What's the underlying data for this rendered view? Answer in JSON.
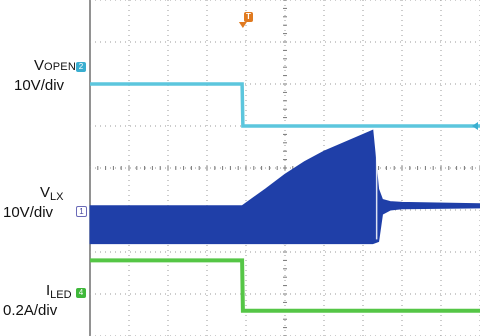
{
  "chart_data": {
    "type": "line",
    "title": "",
    "grid": true,
    "grid_divisions": {
      "x": 10,
      "y": 8
    },
    "trigger_marker": "T",
    "colors": {
      "background": "#ffffff",
      "grid": "#9a9a9a",
      "ch1": "#1f3fa8",
      "ch2": "#5cc6dd",
      "ch4": "#55c646"
    },
    "channels": [
      {
        "id": "2",
        "name_main": "V",
        "name_sub": "OPEN",
        "scale": "10V/div",
        "color": "#5cc6dd",
        "x": [
          0,
          3.9,
          3.92,
          10
        ],
        "y": [
          6.0,
          6.0,
          5.0,
          5.0
        ]
      },
      {
        "id": "1",
        "name_main": "V",
        "name_sub": "LX",
        "scale": "10V/div",
        "color": "#1f3fa8",
        "envelope": {
          "x": [
            0,
            3.9,
            4.5,
            5.0,
            5.5,
            6.0,
            6.5,
            7.0,
            7.25,
            7.4,
            7.5,
            7.7,
            8.0,
            10
          ],
          "top": [
            3.1,
            3.1,
            3.5,
            3.85,
            4.15,
            4.4,
            4.6,
            4.8,
            4.9,
            3.5,
            3.25,
            3.2,
            3.18,
            3.15
          ],
          "bottom": [
            2.2,
            2.2,
            2.2,
            2.2,
            2.2,
            2.2,
            2.2,
            2.2,
            2.2,
            2.25,
            2.9,
            3.0,
            3.03,
            3.05
          ]
        }
      },
      {
        "id": "4",
        "name_main": "I",
        "name_sub": "LED",
        "scale": "0.2A/div",
        "color": "#55c646",
        "x": [
          0,
          3.9,
          3.92,
          10
        ],
        "y": [
          1.8,
          1.8,
          0.6,
          0.6
        ]
      }
    ]
  }
}
